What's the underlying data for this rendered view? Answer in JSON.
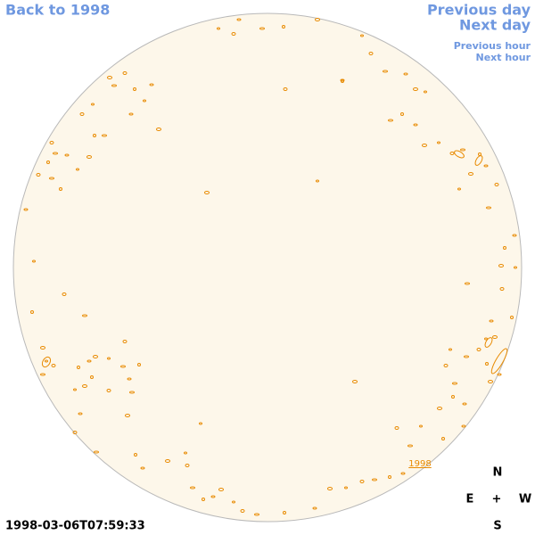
{
  "nav": {
    "back": "Back to 1998",
    "previous_day": "Previous day",
    "next_day": "Next day",
    "previous_hour": "Previous hour",
    "next_hour": "Next hour"
  },
  "disk": {
    "year_label": "1998"
  },
  "compass": {
    "north": "N",
    "east": "E",
    "center": "+",
    "west": "W",
    "south": "S"
  },
  "timestamp": "1998-03-06T07:59:33"
}
